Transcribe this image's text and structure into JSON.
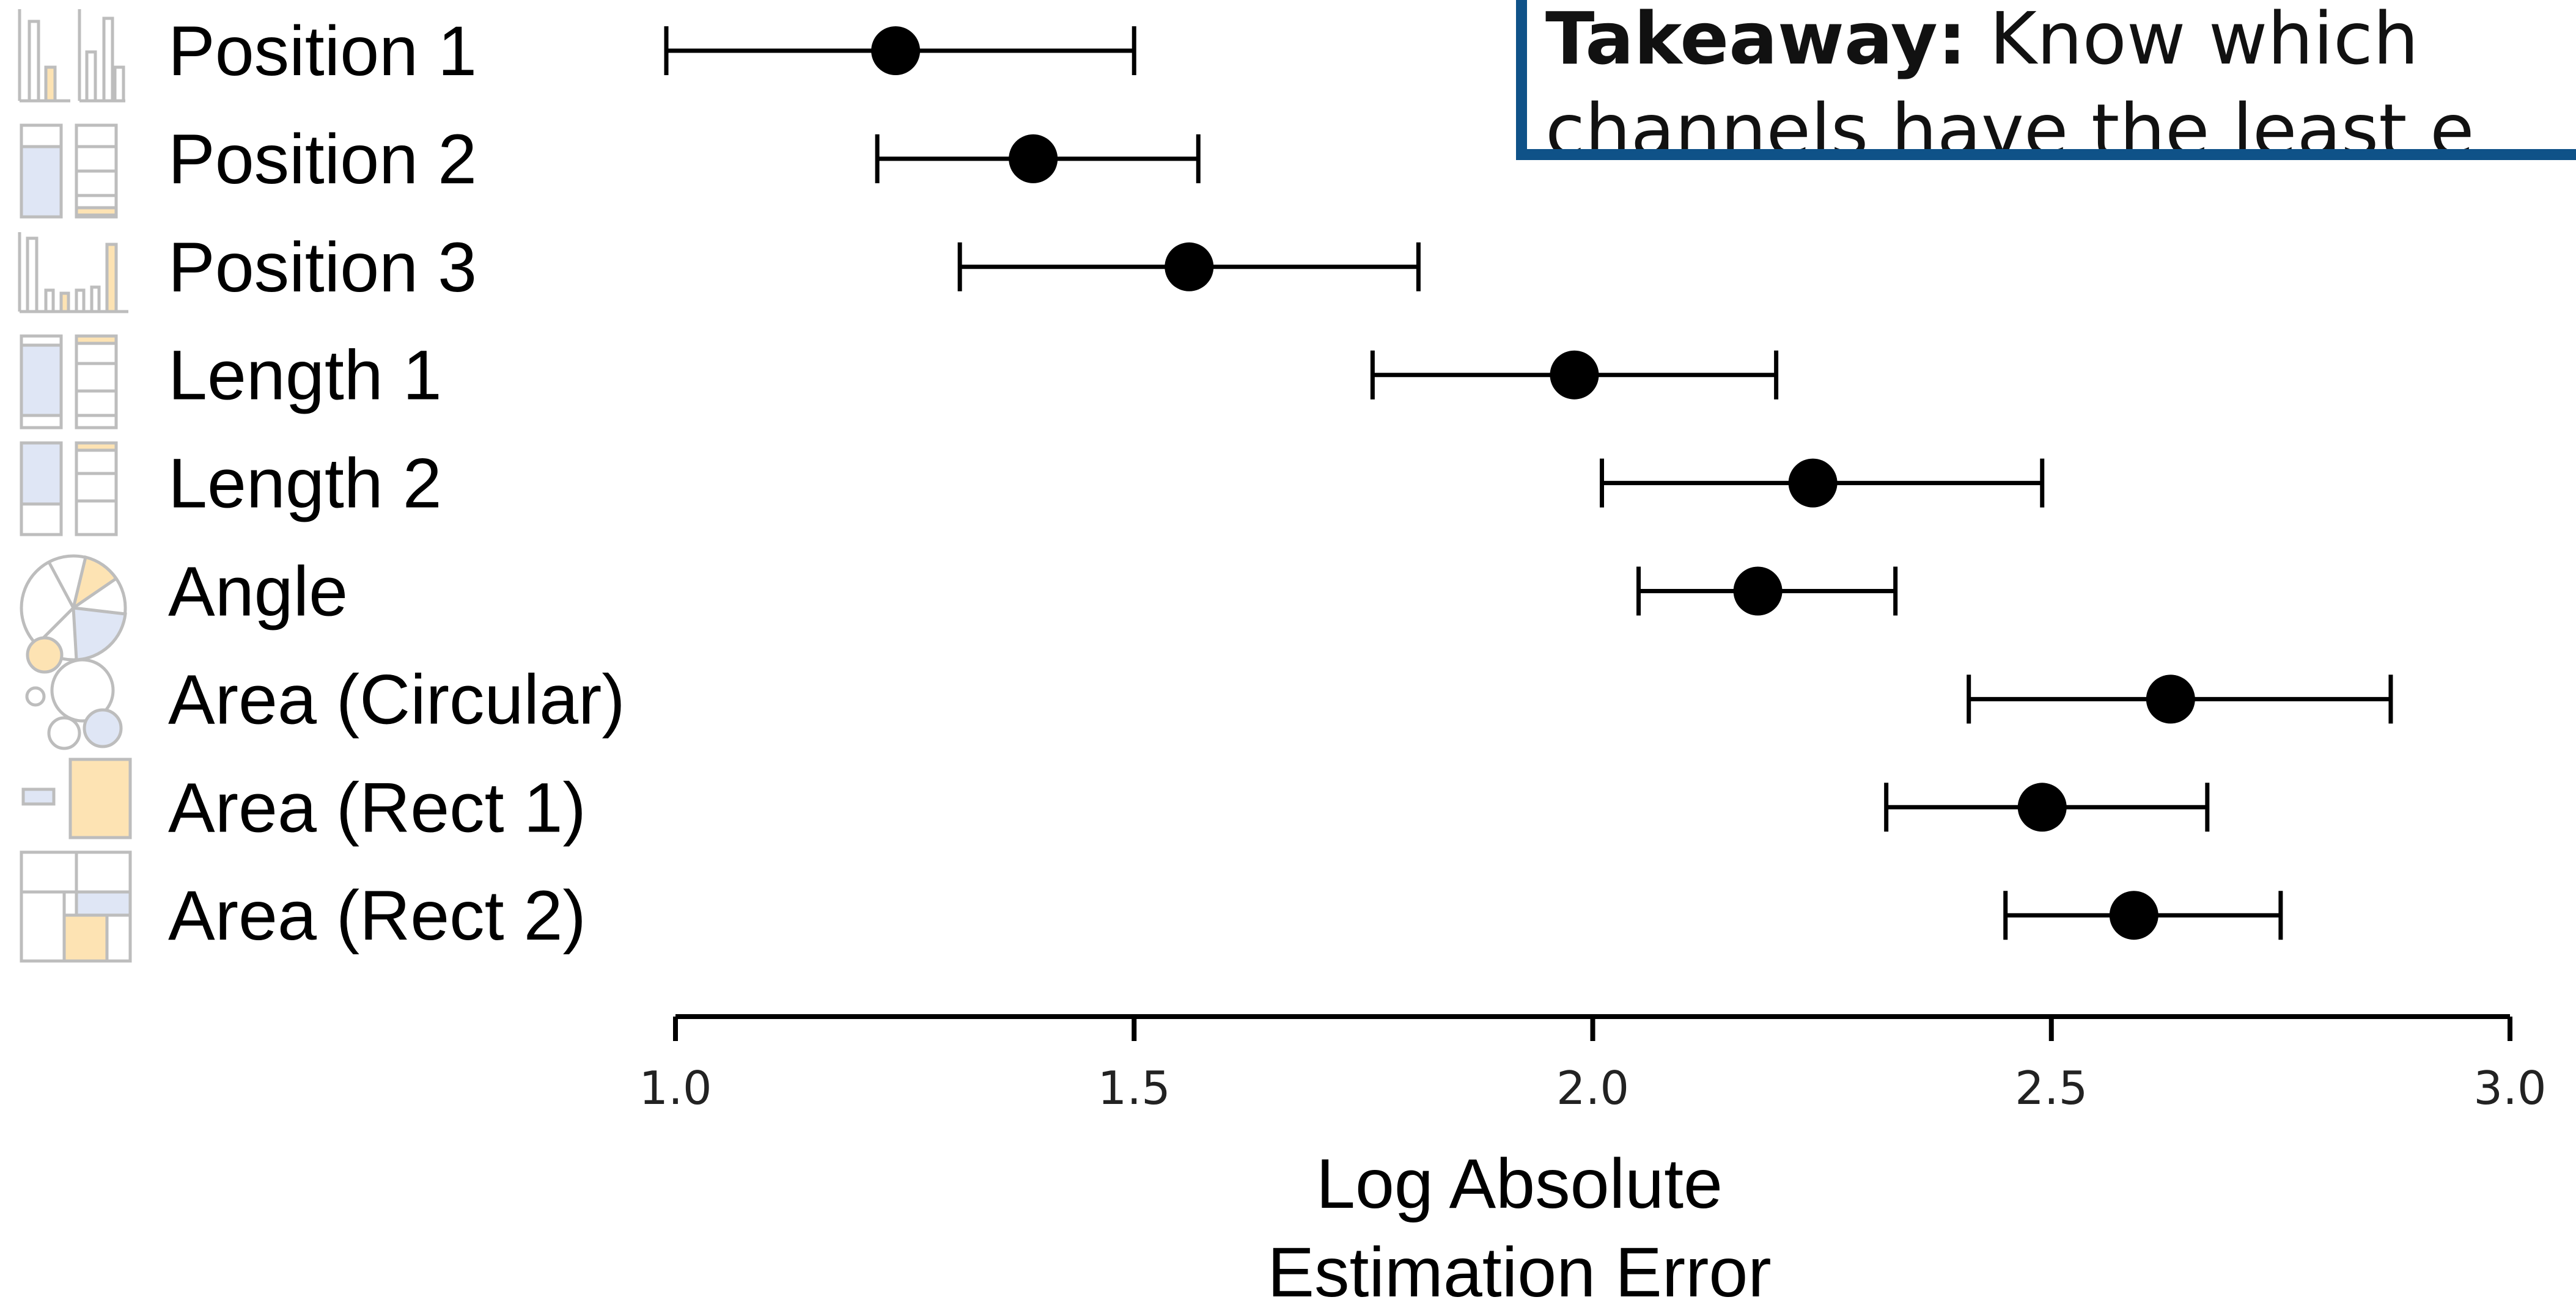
{
  "takeaway": {
    "heading": "Takeaway:",
    "line1_rest": " Know which",
    "line2": "channels have the least e"
  },
  "chart_data": {
    "type": "scatter",
    "xlabel_line1": "Log Absolute",
    "xlabel_line2": "Estimation Error",
    "xlim": [
      1.0,
      3.0
    ],
    "xticks": [
      "1.0",
      "1.5",
      "2.0",
      "2.5",
      "3.0"
    ],
    "categories": [
      "Position 1",
      "Position 2",
      "Position 3",
      "Length 1",
      "Length 2",
      "Angle",
      "Area (Circular)",
      "Area (Rect 1)",
      "Area (Rect 2)"
    ],
    "series": [
      {
        "values": [
          1.24,
          1.39,
          1.56,
          1.98,
          2.24,
          2.18,
          2.63,
          2.49,
          2.59
        ],
        "ci_low": [
          0.99,
          1.22,
          1.31,
          1.76,
          2.01,
          2.05,
          2.41,
          2.32,
          2.45
        ],
        "ci_high": [
          1.5,
          1.57,
          1.81,
          2.2,
          2.49,
          2.33,
          2.87,
          2.67,
          2.75
        ]
      }
    ],
    "icons": [
      "position-1-bar-icon",
      "position-2-stacked-icon",
      "position-3-bar-icon",
      "length-1-stacked-icon",
      "length-2-stacked-icon",
      "angle-pie-icon",
      "area-circular-bubbles-icon",
      "area-rect-1-icon",
      "area-rect-2-treemap-icon"
    ],
    "colors": {
      "point": "#000000",
      "icon_highlight": "#fde3b3",
      "icon_blue": "#dfe6f5",
      "icon_outline": "#bdbdbd",
      "takeaway_border": "#0f5288"
    },
    "grid": false
  }
}
